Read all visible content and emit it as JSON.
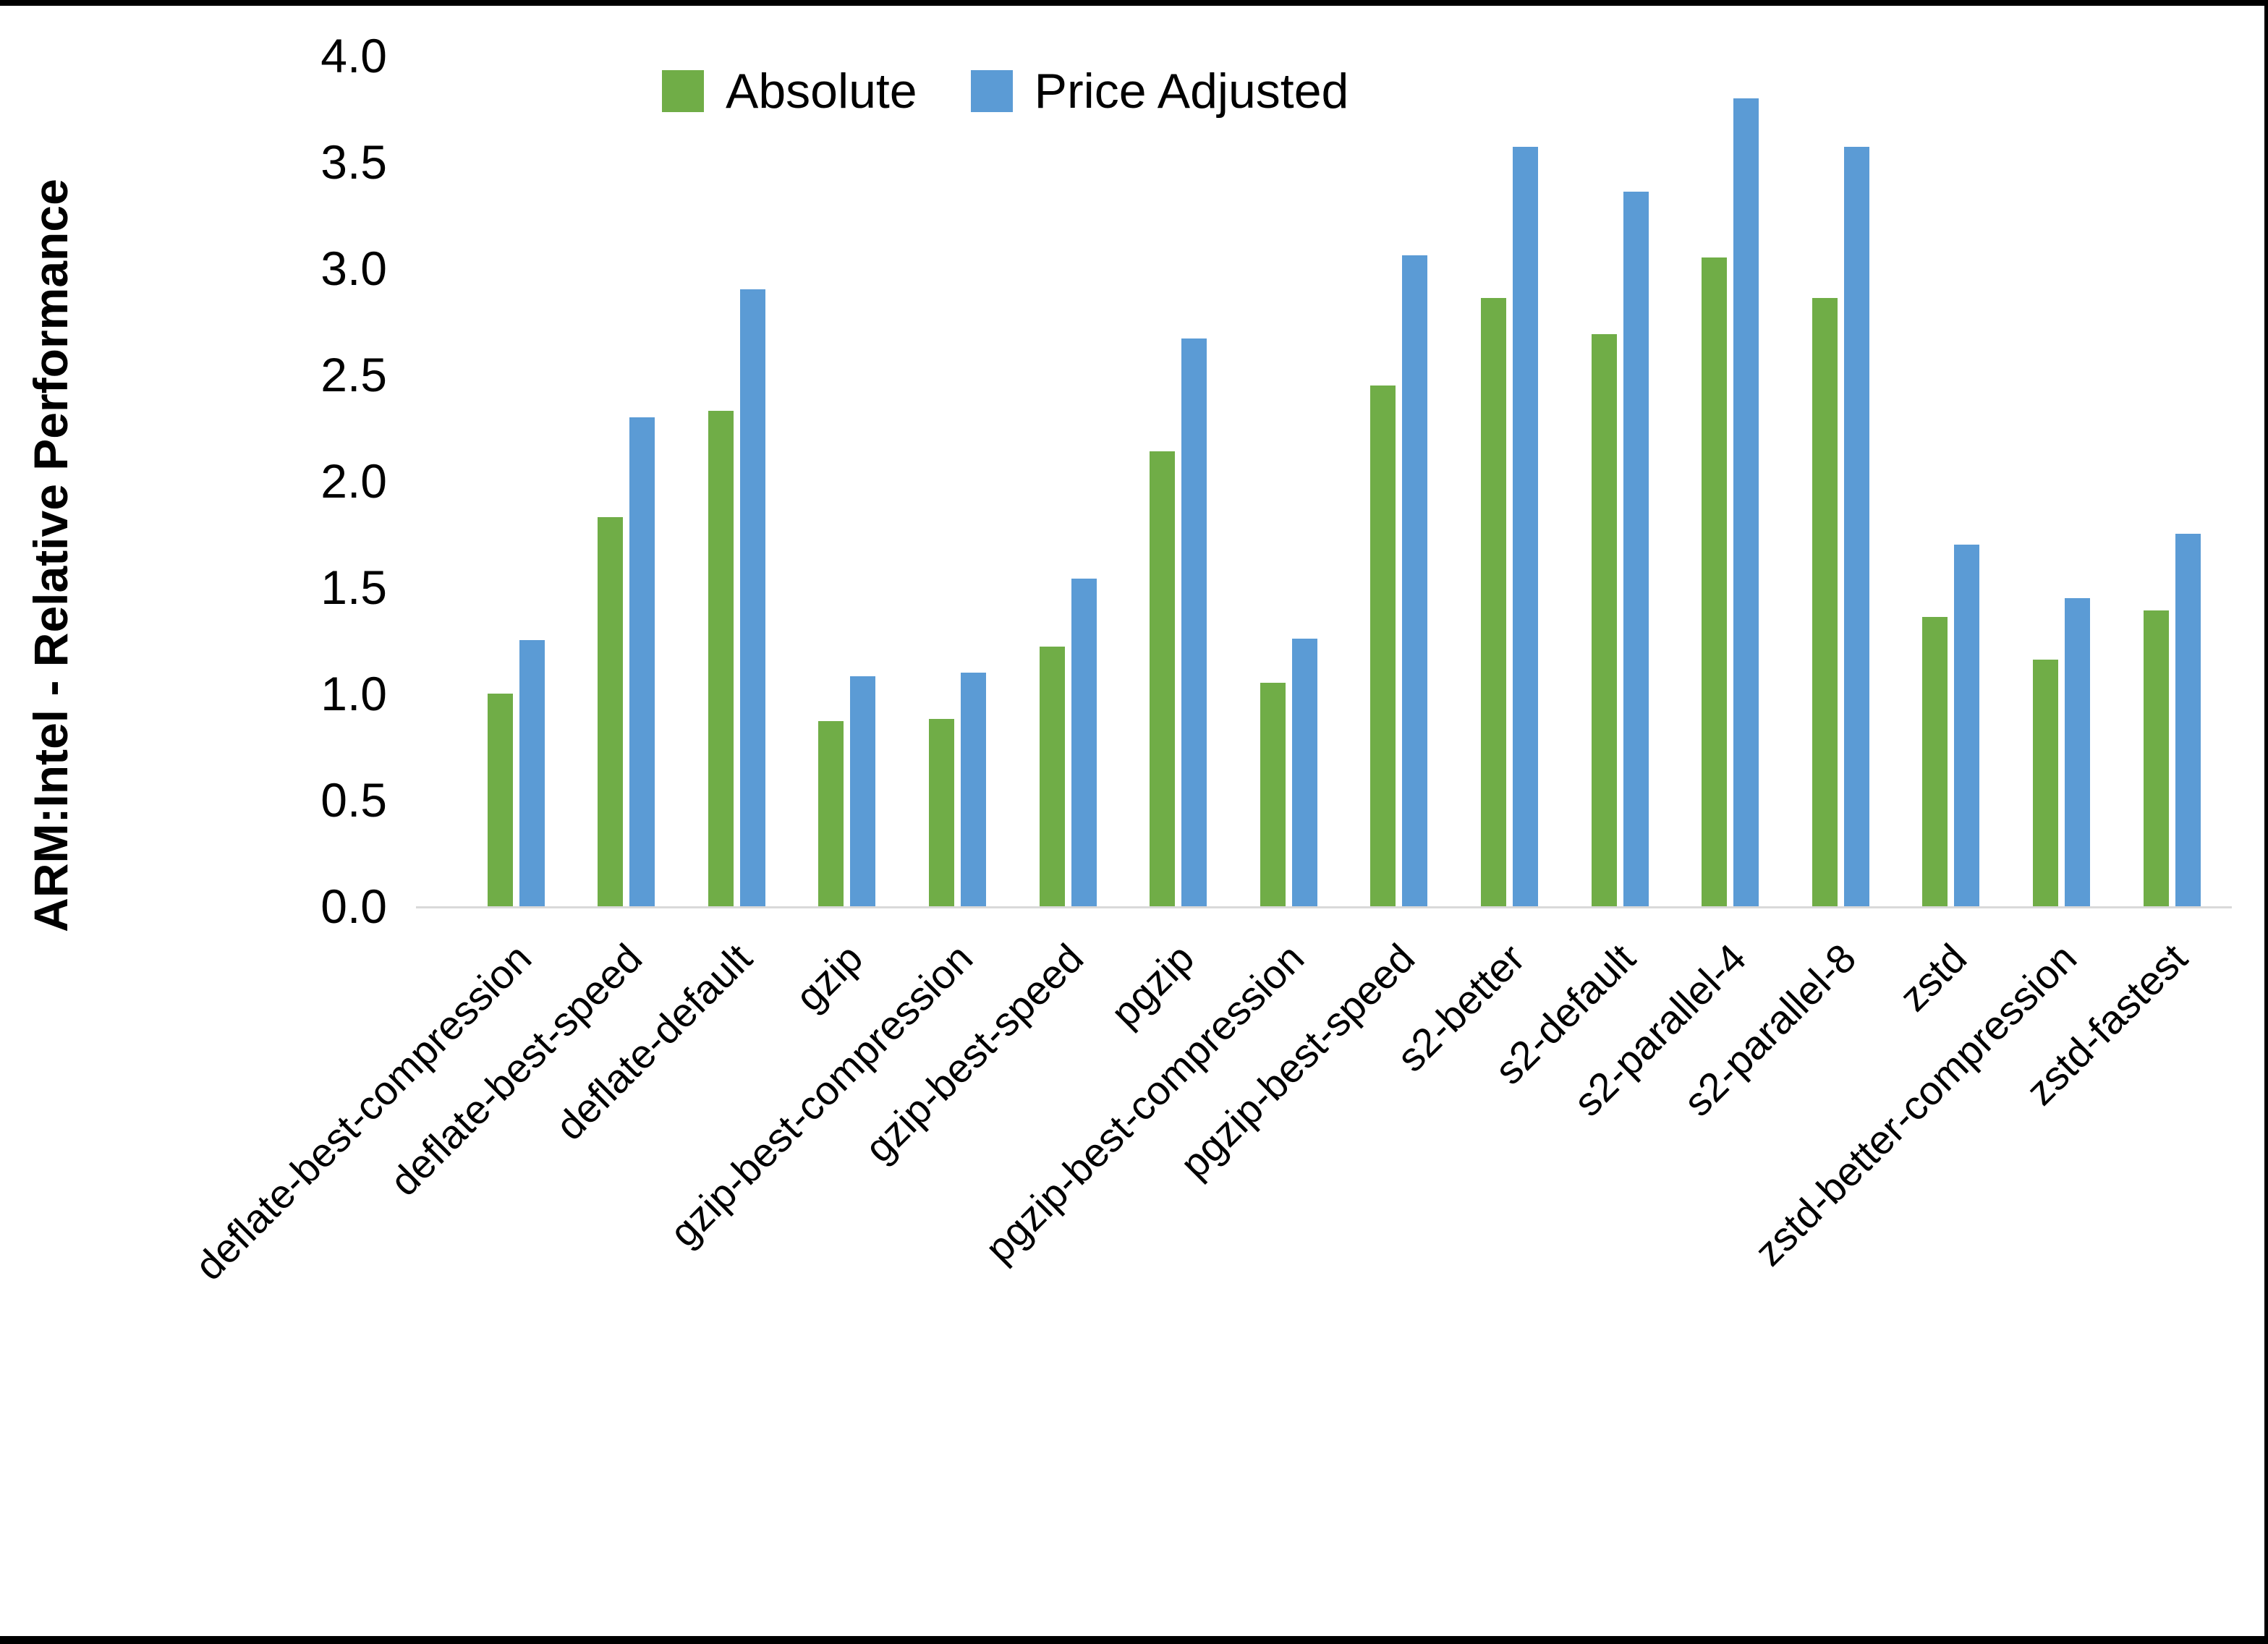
{
  "page": {
    "background_color": "#ffffff",
    "frame_color": "#000000"
  },
  "chart_data": {
    "type": "bar",
    "title": "",
    "xlabel": "",
    "ylabel": "ARM:Intel - Relative Performance",
    "ylim": [
      0.0,
      4.0
    ],
    "ytick_step": 0.5,
    "ytick_labels": [
      "0.0",
      "0.5",
      "1.0",
      "1.5",
      "2.0",
      "2.5",
      "3.0",
      "3.5",
      "4.0"
    ],
    "grid": false,
    "legend_position": "top-center",
    "axis_line_color": "#d9d9d9",
    "categories": [
      "deflate-best-compression",
      "deflate-best-speed",
      "deflate-default",
      "gzip",
      "gzip-best-compression",
      "gzip-best-speed",
      "pgzip",
      "pgzip-best-compression",
      "pgzip-best-speed",
      "s2-better",
      "s2-default",
      "s2-parallel-4",
      "s2-parallel-8",
      "zstd",
      "zstd-better-compression",
      "zstd-fastest"
    ],
    "series": [
      {
        "name": "Absolute",
        "color": "#70AD47",
        "values": [
          1.0,
          1.83,
          2.33,
          0.87,
          0.88,
          1.22,
          2.14,
          1.05,
          2.45,
          2.86,
          2.69,
          3.05,
          2.86,
          1.36,
          1.16,
          1.39
        ]
      },
      {
        "name": "Price Adjusted",
        "color": "#5B9BD5",
        "values": [
          1.25,
          2.3,
          2.9,
          1.08,
          1.1,
          1.54,
          2.67,
          1.26,
          3.06,
          3.57,
          3.36,
          3.8,
          3.57,
          1.7,
          1.45,
          1.75
        ]
      }
    ]
  }
}
